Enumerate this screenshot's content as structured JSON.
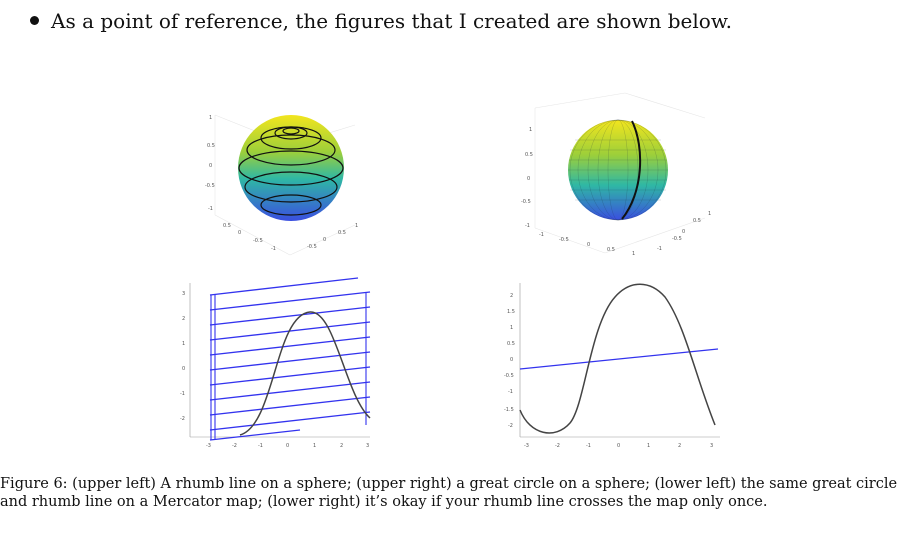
{
  "bullet_text": "As a point of reference, the figures that I created are shown below.",
  "caption_label": "Figure 6:",
  "caption_text": "(upper left) A rhumb line on a sphere; (upper right) a great circle on a sphere; (lower left) the same great circle and rhumb line on a Mercator map; (lower right) it’s okay if your rhumb line crosses the map only once.",
  "colors": {
    "rhumb": "#3333ee",
    "great_circle": "#444444",
    "sphere_top": "#f2e51e",
    "sphere_bottom": "#3a4ee0"
  },
  "figures": {
    "upper_left": {
      "z_ticks": [
        "1",
        "0.5",
        "0",
        "-0.5",
        "-1"
      ],
      "x_ticks": [
        "0.5",
        "0",
        "-0.5",
        "-1"
      ],
      "y_ticks": [
        "-0.5",
        "0",
        "0.5",
        "1"
      ]
    },
    "upper_right": {
      "z_ticks": [
        "1",
        "0.5",
        "0",
        "-0.5",
        "-1"
      ],
      "x_ticks": [
        "-1",
        "-0.5",
        "0",
        "0.5",
        "1"
      ],
      "y_ticks": [
        "1",
        "0.5",
        "0",
        "-0.5",
        "-1"
      ]
    },
    "lower_left": {
      "y_ticks": [
        "3",
        "2",
        "1",
        "0",
        "-1",
        "-2"
      ],
      "x_ticks": [
        "-3",
        "-2",
        "-1",
        "0",
        "1",
        "2",
        "3"
      ]
    },
    "lower_right": {
      "y_ticks": [
        "2",
        "1.5",
        "1",
        "0.5",
        "0",
        "-0.5",
        "-1",
        "-1.5",
        "-2"
      ],
      "x_ticks": [
        "-3",
        "-2",
        "-1",
        "0",
        "1",
        "2",
        "3"
      ]
    }
  }
}
